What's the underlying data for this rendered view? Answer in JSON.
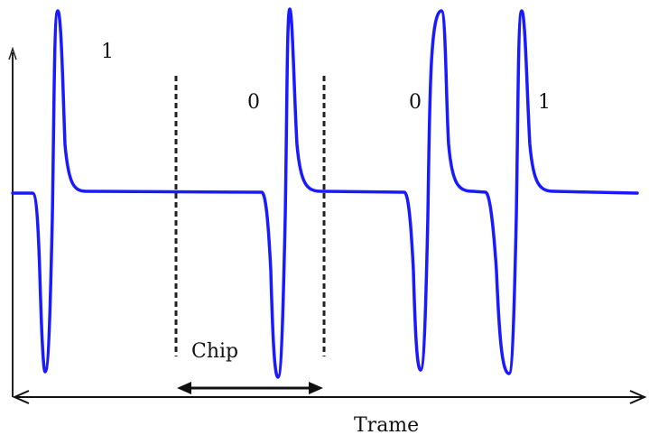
{
  "bit_labels": [
    "1",
    "0",
    "0",
    "1"
  ],
  "chip_label": "Chip",
  "frame_label": "Trame",
  "colors": {
    "pulse": "#1a1aff",
    "axis": "#222222",
    "divider": "#222222",
    "text": "#111111"
  }
}
